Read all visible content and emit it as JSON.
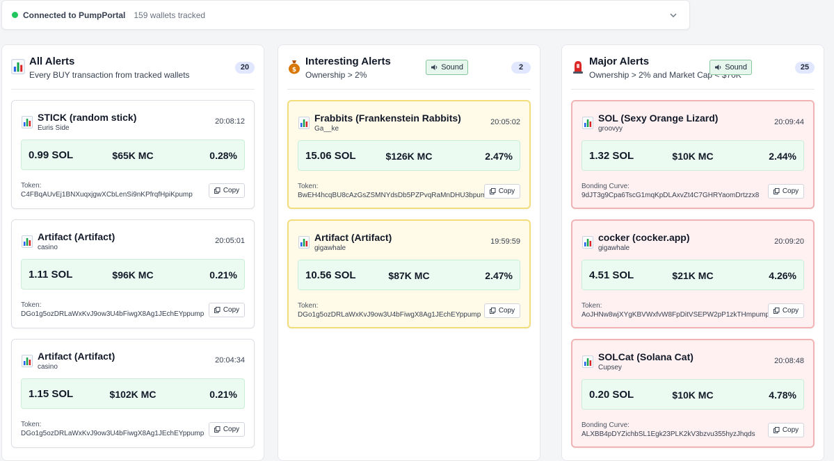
{
  "status": {
    "connection_text": "Connected to PumpPortal",
    "wallets_text": "159 wallets tracked",
    "dot_color": "#22c55e"
  },
  "columns": [
    {
      "title": "All Alerts",
      "subtitle": "Every BUY transaction from tracked wallets",
      "count": "20",
      "icon": "bar-chart-icon",
      "cards": [
        {
          "title": "STICK (random stick)",
          "wallet": "Euris Side",
          "time": "20:08:12",
          "sol": "0.99 SOL",
          "mc": "$65K MC",
          "pct": "0.28%",
          "addr_label": "Token:",
          "addr": "C4FBqAUvEj1BNXuqxjgwXCbLenSi9nKPfrqfHpiKpump",
          "copy": "Copy"
        },
        {
          "title": "Artifact (Artifact)",
          "wallet": "casino",
          "time": "20:05:01",
          "sol": "1.11 SOL",
          "mc": "$96K MC",
          "pct": "0.21%",
          "addr_label": "Token:",
          "addr": "DGo1g5ozDRLaWxKvJ9ow3U4bFiwgX8Ag1JEchEYppump",
          "copy": "Copy"
        },
        {
          "title": "Artifact (Artifact)",
          "wallet": "casino",
          "time": "20:04:34",
          "sol": "1.15 SOL",
          "mc": "$102K MC",
          "pct": "0.21%",
          "addr_label": "Token:",
          "addr": "DGo1g5ozDRLaWxKvJ9ow3U4bFiwgX8Ag1JEchEYppump",
          "copy": "Copy"
        }
      ]
    },
    {
      "title": "Interesting Alerts",
      "subtitle": "Ownership > 2%",
      "count": "2",
      "sound": "Sound",
      "icon": "money-bag-icon",
      "cards": [
        {
          "title": "Frabbits (Frankenstein Rabbits)",
          "wallet": "Ga__ke",
          "time": "20:05:02",
          "sol": "15.06 SOL",
          "mc": "$126K MC",
          "pct": "2.47%",
          "addr_label": "Token:",
          "addr": "BwEH4hcqBU8cAzGsZSMNYdsDb5PZPvqRaMnDHU3bpump",
          "copy": "Copy"
        },
        {
          "title": "Artifact (Artifact)",
          "wallet": "gigawhale",
          "time": "19:59:59",
          "sol": "10.56 SOL",
          "mc": "$87K MC",
          "pct": "2.47%",
          "addr_label": "Token:",
          "addr": "DGo1g5ozDRLaWxKvJ9ow3U4bFiwgX8Ag1JEchEYppump",
          "copy": "Copy"
        }
      ]
    },
    {
      "title": "Major Alerts",
      "subtitle": "Ownership > 2% and Market Cap < $70K",
      "count": "25",
      "sound": "Sound",
      "icon": "siren-icon",
      "cards": [
        {
          "title": "SOL (Sexy Orange Lizard)",
          "wallet": "groovyy",
          "time": "20:09:44",
          "sol": "1.32 SOL",
          "mc": "$10K MC",
          "pct": "2.44%",
          "addr_label": "Bonding Curve:",
          "addr": "9dJT3g9Cpa6TscG1mqKpDLAxvZt4C7GHRYaomDrtzzx8",
          "copy": "Copy"
        },
        {
          "title": "cocker (cocker.app)",
          "wallet": "gigawhale",
          "time": "20:09:20",
          "sol": "4.51 SOL",
          "mc": "$21K MC",
          "pct": "4.26%",
          "addr_label": "Token:",
          "addr": "AoJHNw8wjXYgKBVWxfvW8FpDitVSEPW2pP1zkTHmpump",
          "copy": "Copy"
        },
        {
          "title": "SOLCat (Solana Cat)",
          "wallet": "Cupsey",
          "time": "20:08:48",
          "sol": "0.20 SOL",
          "mc": "$10K MC",
          "pct": "4.78%",
          "addr_label": "Bonding Curve:",
          "addr": "ALXBB4pDYZichbSL1Egk23PLK2kV3bzvu355hyzJhqds",
          "copy": "Copy"
        }
      ]
    }
  ]
}
